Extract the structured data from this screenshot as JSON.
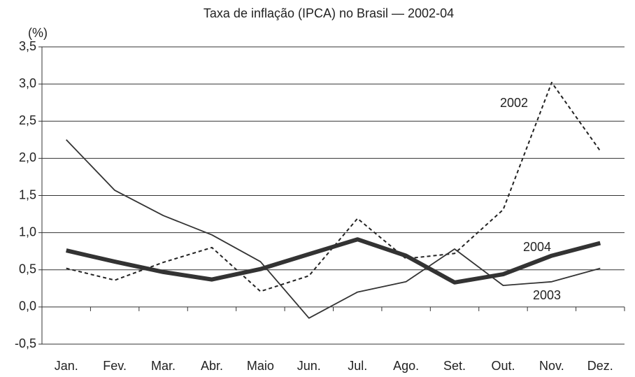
{
  "chart_data": {
    "type": "line",
    "title": "Taxa de inflação (IPCA)  no Brasil — 2002-04",
    "y_label": "(%)",
    "categories": [
      "Jan.",
      "Fev.",
      "Mar.",
      "Abr.",
      "Maio",
      "Jun.",
      "Jul.",
      "Ago.",
      "Set.",
      "Out.",
      "Nov.",
      "Dez."
    ],
    "series": [
      {
        "name": "2002",
        "color": "#222222",
        "line_style": "dashed",
        "values": [
          0.52,
          0.36,
          0.6,
          0.8,
          0.21,
          0.42,
          1.19,
          0.65,
          0.72,
          1.31,
          3.02,
          2.1
        ]
      },
      {
        "name": "2003",
        "color": "#333333",
        "line_style": "thin",
        "values": [
          2.25,
          1.57,
          1.23,
          0.97,
          0.61,
          -0.15,
          0.2,
          0.34,
          0.78,
          0.29,
          0.34,
          0.52
        ]
      },
      {
        "name": "2004",
        "color": "#333333",
        "line_style": "thick",
        "values": [
          0.76,
          0.61,
          0.47,
          0.37,
          0.51,
          0.71,
          0.91,
          0.69,
          0.33,
          0.44,
          0.69,
          0.86
        ]
      }
    ],
    "ylim": [
      -0.5,
      3.5
    ],
    "yticks": [
      {
        "value": -0.5,
        "label": "-0,5"
      },
      {
        "value": 0,
        "label": "0,0"
      },
      {
        "value": 0.5,
        "label": "0,5"
      },
      {
        "value": 1,
        "label": "1,0"
      },
      {
        "value": 1.5,
        "label": "1,5"
      },
      {
        "value": 2,
        "label": "2,0"
      },
      {
        "value": 2.5,
        "label": "2,5"
      },
      {
        "value": 3,
        "label": "3,0"
      },
      {
        "value": 3.5,
        "label": "3,5"
      }
    ],
    "grid": true
  }
}
